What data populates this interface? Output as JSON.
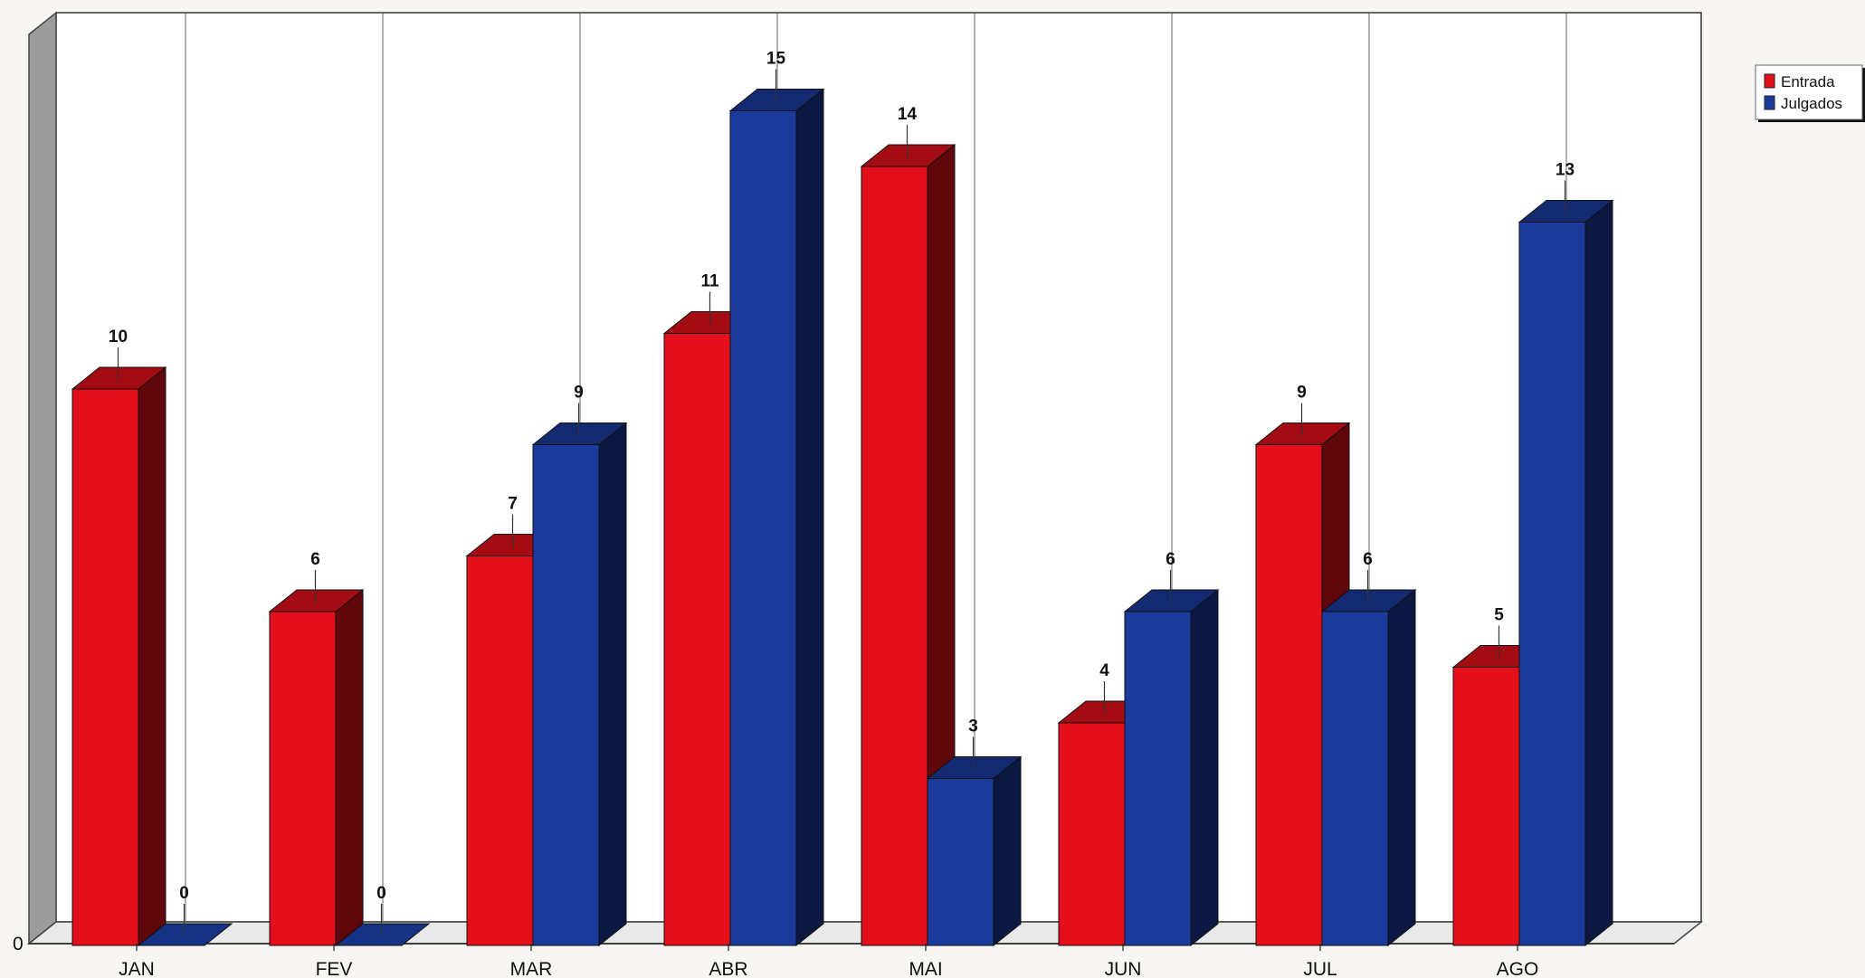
{
  "chart_data": {
    "type": "bar",
    "categories": [
      "JAN",
      "FEV",
      "MAR",
      "ABR",
      "MAI",
      "JUN",
      "JUL",
      "AGO"
    ],
    "series": [
      {
        "name": "Entrada",
        "values": [
          10,
          6,
          7,
          11,
          14,
          4,
          9,
          5
        ],
        "color": "#e3101b"
      },
      {
        "name": "Julgados",
        "values": [
          0,
          0,
          9,
          15,
          3,
          6,
          6,
          13
        ],
        "color": "#1a3b9c"
      }
    ],
    "y_tick_labels": [
      "0"
    ],
    "ylim": [
      0,
      16
    ],
    "grid": "vertical lines between categories",
    "legend_position": "top-right",
    "style": "3d-bars-with-value-labels"
  },
  "legend": {
    "entries": [
      "Entrada",
      "Julgados"
    ]
  }
}
